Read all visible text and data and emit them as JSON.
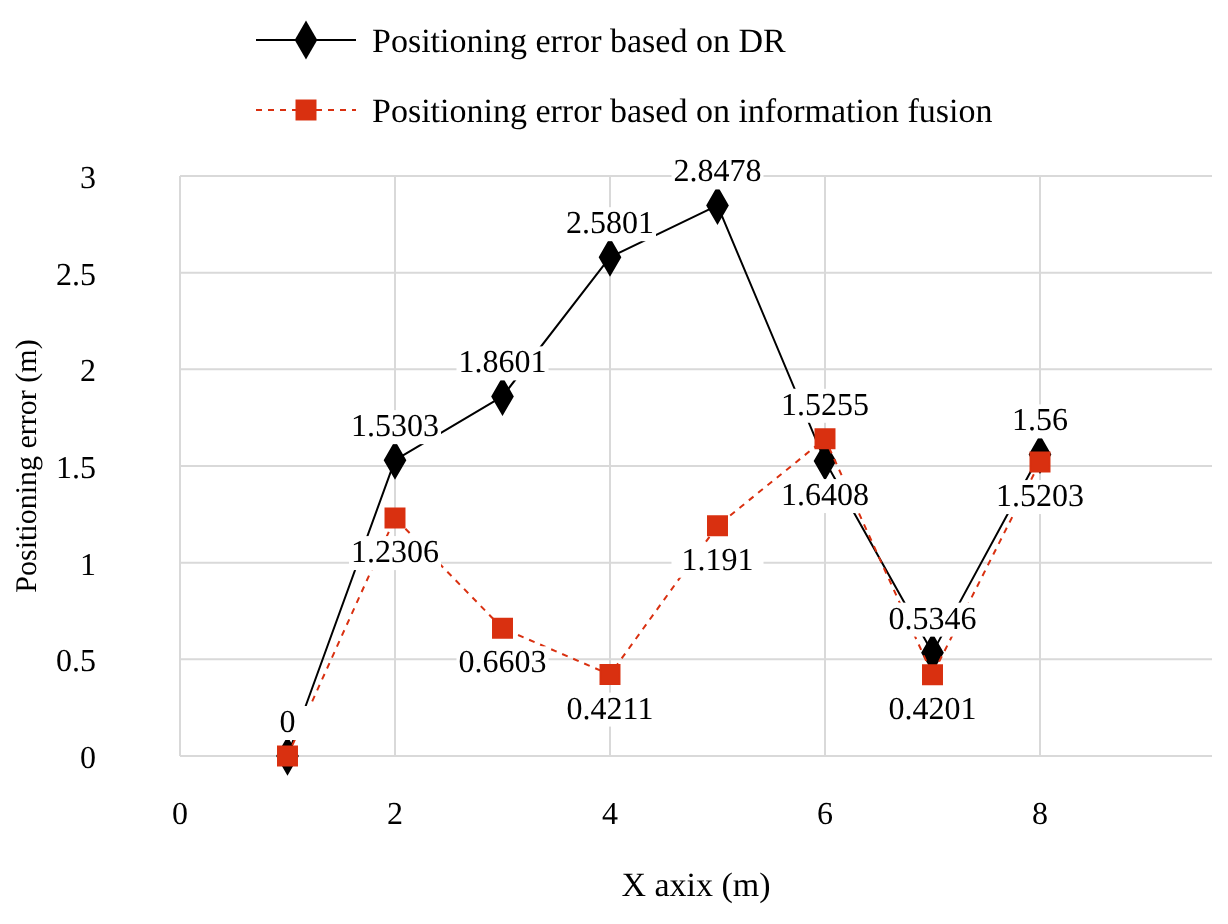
{
  "chart_data": {
    "type": "line",
    "xlabel": "X axix (m)",
    "ylabel": "Positioning error  (m)",
    "xlim": [
      0,
      9.6
    ],
    "xticks": [
      0,
      2,
      4,
      6,
      8
    ],
    "ylim": [
      0,
      3
    ],
    "yticks": [
      0,
      0.5,
      1,
      1.5,
      2,
      2.5,
      3
    ],
    "grid": true,
    "legend": "top",
    "x": [
      1,
      2,
      3,
      4,
      5,
      6,
      7,
      8
    ],
    "series": [
      {
        "name": "Positioning error based on DR",
        "color": "#000000",
        "marker": "diamond",
        "line_style": "solid",
        "values": [
          0,
          1.5303,
          1.8601,
          2.5801,
          2.8478,
          1.5255,
          0.5346,
          1.56
        ],
        "value_labels": [
          "0",
          "1.5303",
          "1.8601",
          "2.5801",
          "2.8478",
          "1.5255",
          "0.5346",
          "1.56"
        ]
      },
      {
        "name": "Positioning error based on information fusion",
        "color": "#d93010",
        "marker": "square",
        "line_style": "dashed",
        "values": [
          0,
          1.2306,
          0.6603,
          0.4211,
          1.191,
          1.6408,
          0.4201,
          1.5203
        ],
        "value_labels": [
          null,
          "1.2306",
          "0.6603",
          "0.4211",
          "1.191",
          "1.6408",
          "0.4201",
          "1.5203"
        ]
      }
    ]
  }
}
